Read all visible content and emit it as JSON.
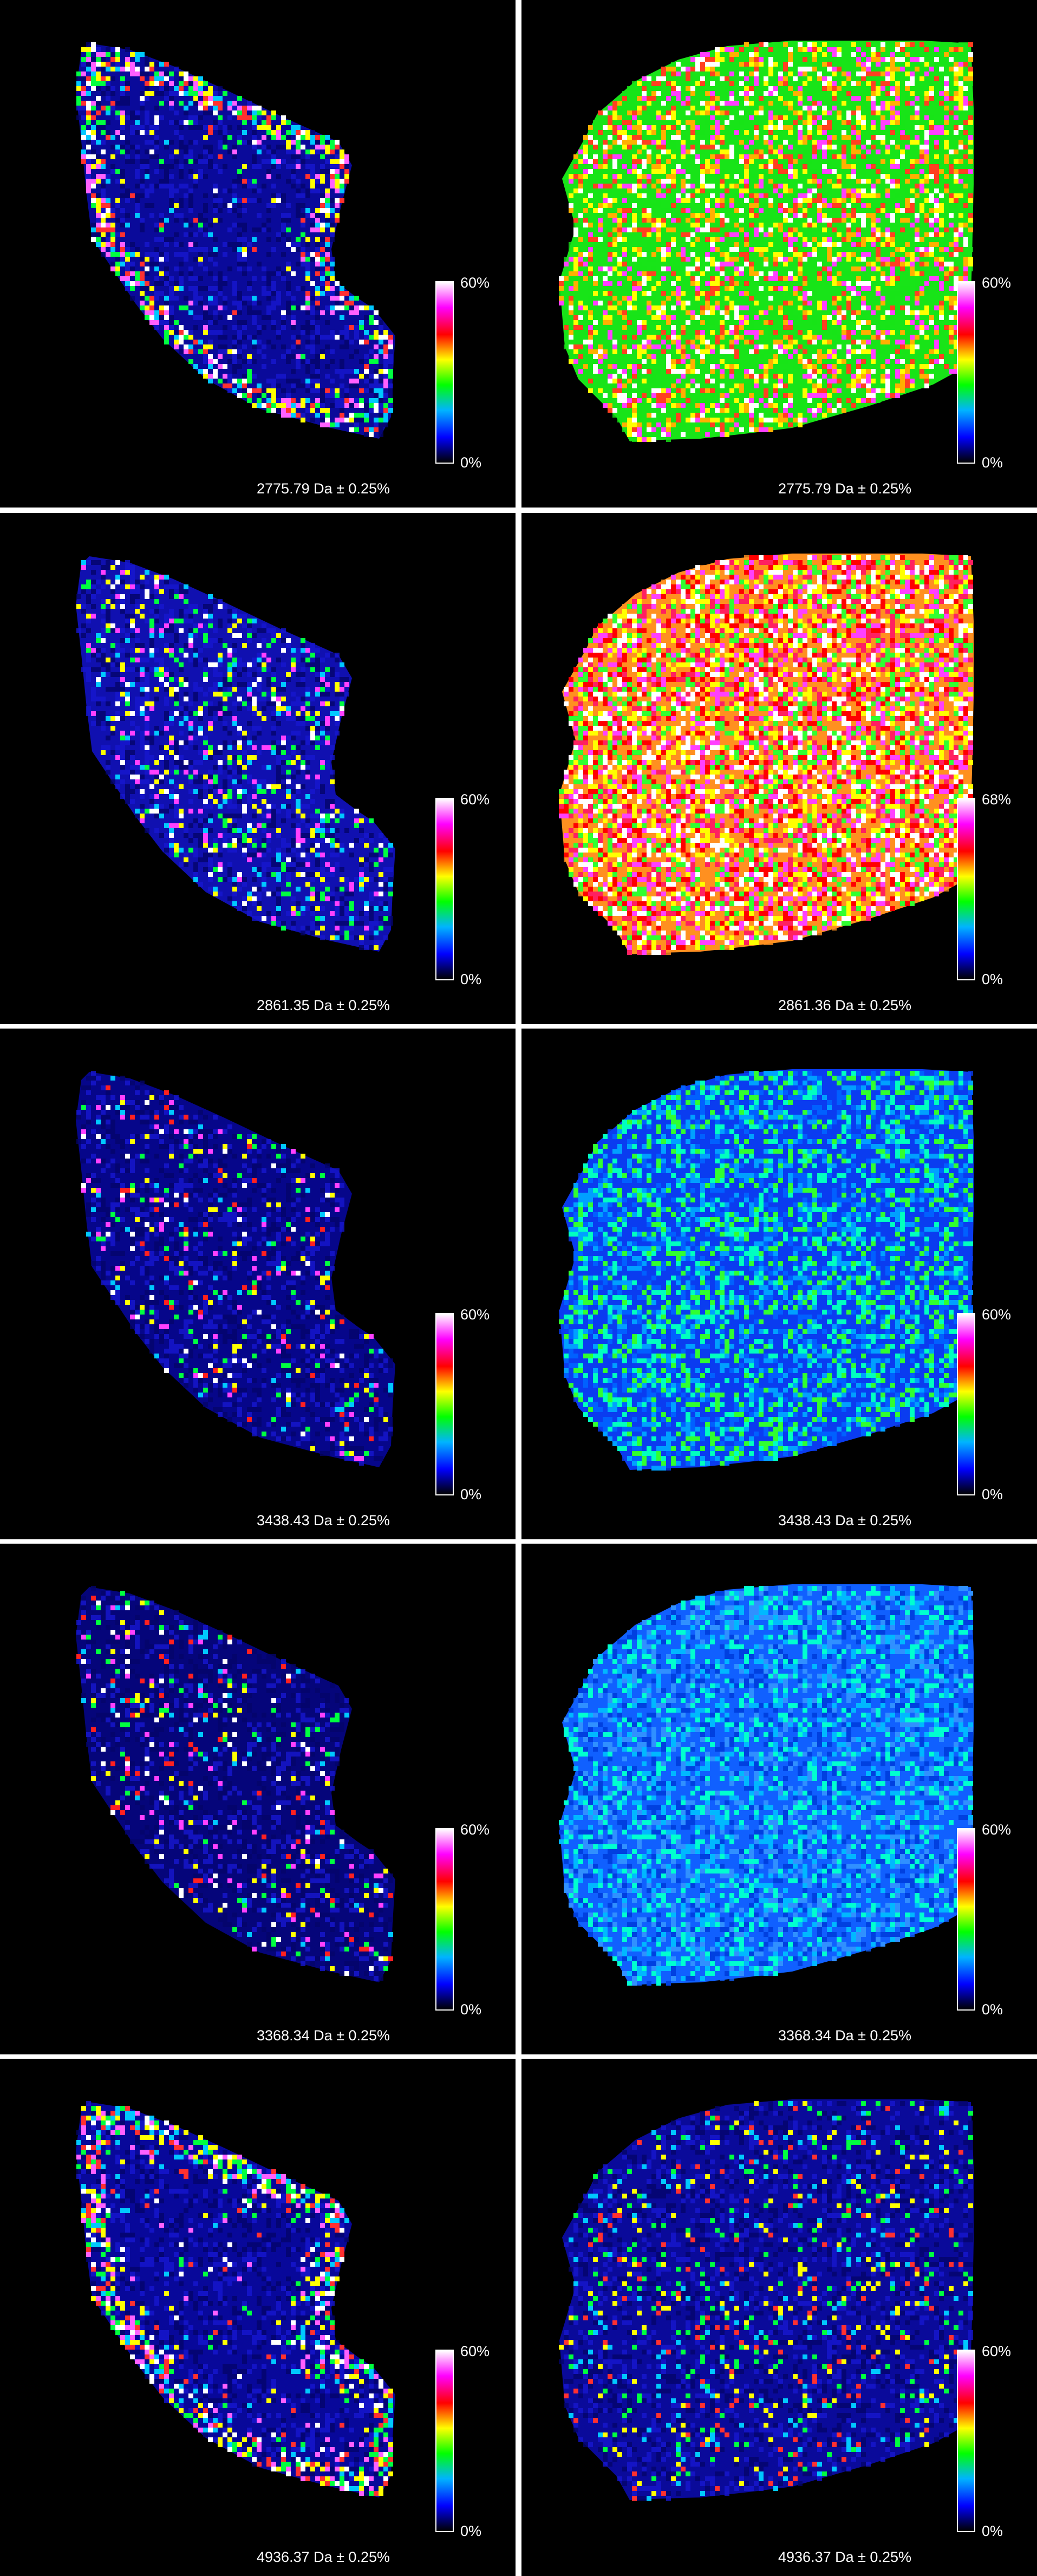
{
  "colorbar": {
    "colors": [
      "#000000",
      "#0000ff",
      "#00b4ff",
      "#00ff00",
      "#ffff00",
      "#ff0000",
      "#ff00ff",
      "#ffffff"
    ]
  },
  "panels": [
    {
      "row": 0,
      "col": 0,
      "label": "2775.79 Da ± 0.25%",
      "scale_max": "60%",
      "scale_min": "0%",
      "shape": "A",
      "pattern": "edge",
      "base": "#0a0a9a",
      "accents": [
        "#00ff40",
        "#ffff00",
        "#ff3030",
        "#ff60ff",
        "#ffffff",
        "#00c8ff"
      ]
    },
    {
      "row": 0,
      "col": 1,
      "label": "2775.79 Da ± 0.25%",
      "scale_max": "60%",
      "scale_min": "0%",
      "shape": "B",
      "pattern": "dense",
      "base": "#18e418",
      "accents": [
        "#ffff00",
        "#ff4020",
        "#ff40ff",
        "#ffffff",
        "#ffb000"
      ]
    },
    {
      "row": 1,
      "col": 0,
      "label": "2861.35 Da ± 0.25%",
      "scale_max": "60%",
      "scale_min": "0%",
      "shape": "A",
      "pattern": "scatter",
      "base": "#1010b0",
      "accents": [
        "#00ff40",
        "#00c8ff",
        "#ffff00",
        "#ff40ff",
        "#ffffff"
      ]
    },
    {
      "row": 1,
      "col": 1,
      "label": "2861.36 Da ± 0.25%",
      "scale_max": "68%",
      "scale_min": "0%",
      "shape": "B",
      "pattern": "hot",
      "base": "#ff9020",
      "accents": [
        "#ff2060",
        "#ff40ff",
        "#ffffff",
        "#ffff00",
        "#30ff30",
        "#ff0000"
      ]
    },
    {
      "row": 2,
      "col": 0,
      "label": "3438.43 Da ± 0.25%",
      "scale_max": "60%",
      "scale_min": "0%",
      "shape": "A",
      "pattern": "sparse",
      "base": "#06068a",
      "accents": [
        "#00ff40",
        "#ffff00",
        "#ff2020",
        "#00c8ff",
        "#ffffff",
        "#ff40ff"
      ]
    },
    {
      "row": 2,
      "col": 1,
      "label": "3438.43 Da ± 0.25%",
      "scale_max": "60%",
      "scale_min": "0%",
      "shape": "B",
      "pattern": "cool",
      "base": "#0a3cf0",
      "accents": [
        "#00a0ff",
        "#0060ff",
        "#00ffc0",
        "#30ff30"
      ]
    },
    {
      "row": 3,
      "col": 0,
      "label": "3368.34 Da ± 0.25%",
      "scale_max": "60%",
      "scale_min": "0%",
      "shape": "A",
      "pattern": "sparse",
      "base": "#05057a",
      "accents": [
        "#00ff40",
        "#ffff00",
        "#ff2020",
        "#00c8ff",
        "#ffffff",
        "#ff40ff"
      ]
    },
    {
      "row": 3,
      "col": 1,
      "label": "3368.34 Da ± 0.25%",
      "scale_max": "60%",
      "scale_min": "0%",
      "shape": "B",
      "pattern": "cool",
      "base": "#1060ff",
      "accents": [
        "#00b8ff",
        "#3090ff",
        "#00ffd0",
        "#0040e0"
      ]
    },
    {
      "row": 4,
      "col": 0,
      "label": "4936.37 Da ± 0.25%",
      "scale_max": "60%",
      "scale_min": "0%",
      "shape": "A",
      "pattern": "edge",
      "base": "#08089a",
      "accents": [
        "#00ff40",
        "#ffff00",
        "#ff3030",
        "#ff60ff",
        "#ffffff",
        "#00c8ff"
      ]
    },
    {
      "row": 4,
      "col": 1,
      "label": "4936.37 Da ± 0.25%",
      "scale_max": "60%",
      "scale_min": "0%",
      "shape": "B",
      "pattern": "sparse",
      "base": "#0a0a9a",
      "accents": [
        "#00c8ff",
        "#00ff40",
        "#ff3030",
        "#ffff00"
      ]
    }
  ]
}
